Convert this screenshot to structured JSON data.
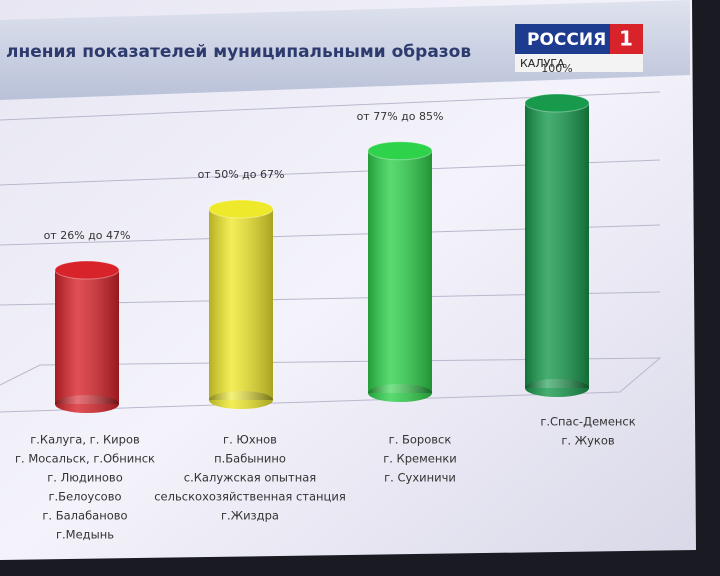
{
  "chart_data": {
    "type": "bar",
    "title": "лнения показателей муниципальными образов",
    "categories": [
      [
        "г.Калуга,  г. Киров",
        "г. Мосальск,  г.Обнинск",
        "г. Людиново",
        "г.Белоусово",
        "г. Балабаново",
        "г.Медынь"
      ],
      [
        "г. Юхнов",
        "п.Бабынино",
        "с.Калужская опытная",
        "сельскохозяйственная станция",
        "г.Жиздра"
      ],
      [
        "г. Боровск",
        "г. Кременки",
        "г. Сухиничи"
      ],
      [
        "г.Спас-Деменск",
        "г. Жуков"
      ]
    ],
    "values": [
      47,
      67,
      85,
      100
    ],
    "value_labels": [
      "от 26% до 47%",
      "от 50% до 67%",
      "от 77% до 85%",
      "100%"
    ],
    "colors": [
      "#d8232a",
      "#efe92c",
      "#2fd24b",
      "#179a4c"
    ],
    "ylim": [
      0,
      100
    ]
  },
  "overlay": {
    "channel": "РОССИЯ",
    "channel_number": "1",
    "region": "КАЛУГА"
  }
}
